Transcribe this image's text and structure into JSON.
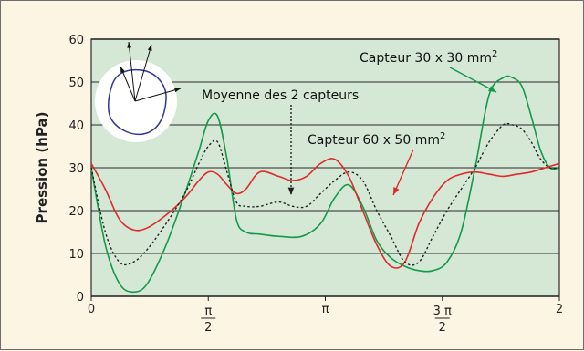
{
  "chart_data": {
    "type": "line",
    "ylabel": "Pression (hPa)",
    "ylim": [
      0,
      60
    ],
    "yticks": [
      0,
      10,
      20,
      30,
      40,
      50,
      60
    ],
    "xlim": [
      0,
      2
    ],
    "xticks": [
      {
        "x": 0,
        "label": "0"
      },
      {
        "x": 0.5,
        "num": "π",
        "den": "2"
      },
      {
        "x": 1,
        "label": "π"
      },
      {
        "x": 1.5,
        "num": "3 π",
        "den": "2"
      },
      {
        "x": 2,
        "label": "2"
      }
    ],
    "grid": "horizontal",
    "colors": {
      "plot_bg": "#d4e8d5",
      "grid": "#2a2a2a",
      "red": "#e02a2a",
      "green": "#15994a",
      "dotted": "#222222"
    },
    "series": [
      {
        "key": "green",
        "style": "solid",
        "color": "#15994a",
        "x": [
          0,
          0.06,
          0.12,
          0.18,
          0.24,
          0.32,
          0.4,
          0.46,
          0.5,
          0.54,
          0.58,
          0.62,
          0.66,
          0.72,
          0.8,
          0.9,
          0.98,
          1.04,
          1.1,
          1.16,
          1.22,
          1.28,
          1.34,
          1.4,
          1.46,
          1.52,
          1.58,
          1.64,
          1.7,
          1.76,
          1.8,
          1.84,
          1.88,
          1.92,
          1.96,
          2.0
        ],
        "y": [
          30,
          12,
          3,
          1,
          3,
          12,
          24,
          34,
          41,
          42,
          32,
          18,
          15,
          14.5,
          14,
          14,
          17,
          23,
          26,
          21,
          13,
          9,
          7,
          6,
          6,
          8,
          15,
          30,
          47,
          51,
          51,
          49,
          42,
          34,
          30,
          30
        ]
      },
      {
        "key": "red",
        "style": "solid",
        "color": "#e02a2a",
        "x": [
          0,
          0.06,
          0.12,
          0.18,
          0.24,
          0.32,
          0.4,
          0.46,
          0.5,
          0.54,
          0.58,
          0.62,
          0.66,
          0.72,
          0.8,
          0.86,
          0.92,
          0.98,
          1.04,
          1.1,
          1.16,
          1.22,
          1.28,
          1.34,
          1.4,
          1.46,
          1.52,
          1.58,
          1.64,
          1.7,
          1.76,
          1.82,
          1.88,
          1.94,
          2.0
        ],
        "y": [
          31,
          25,
          18,
          15.5,
          16,
          19,
          23,
          27,
          29,
          28.5,
          26,
          24,
          25,
          29,
          28,
          27,
          28,
          31,
          32,
          28,
          20,
          12,
          7,
          8,
          17,
          23,
          27,
          28.5,
          29,
          28.5,
          28,
          28.5,
          29,
          30,
          31
        ]
      },
      {
        "key": "dotted",
        "style": "dotted",
        "color": "#222222",
        "x": [
          0,
          0.06,
          0.12,
          0.18,
          0.24,
          0.32,
          0.4,
          0.46,
          0.5,
          0.54,
          0.58,
          0.62,
          0.66,
          0.72,
          0.8,
          0.86,
          0.92,
          0.98,
          1.04,
          1.1,
          1.16,
          1.22,
          1.28,
          1.34,
          1.4,
          1.46,
          1.52,
          1.58,
          1.64,
          1.7,
          1.76,
          1.8,
          1.84,
          1.88,
          1.92,
          1.96,
          2.0
        ],
        "y": [
          30,
          15,
          8,
          8,
          11,
          17,
          24,
          31,
          35,
          36,
          29,
          22,
          21,
          21,
          22,
          21,
          21,
          24,
          27,
          29,
          27,
          20,
          14,
          8,
          8,
          14,
          20,
          25,
          30,
          36,
          40,
          40,
          39,
          36,
          32,
          30,
          30
        ]
      }
    ],
    "annotations": [
      {
        "key": "a30",
        "text": "Capteur 30 x 30 mm",
        "sup": "2",
        "target_series": "green"
      },
      {
        "key": "avg",
        "text": "Moyenne des 2 capteurs",
        "target_series": "dotted"
      },
      {
        "key": "a60",
        "text": "Capteur 60 x 50 mm",
        "sup": "2",
        "target_series": "red"
      }
    ],
    "inset": "sensor-outline"
  }
}
